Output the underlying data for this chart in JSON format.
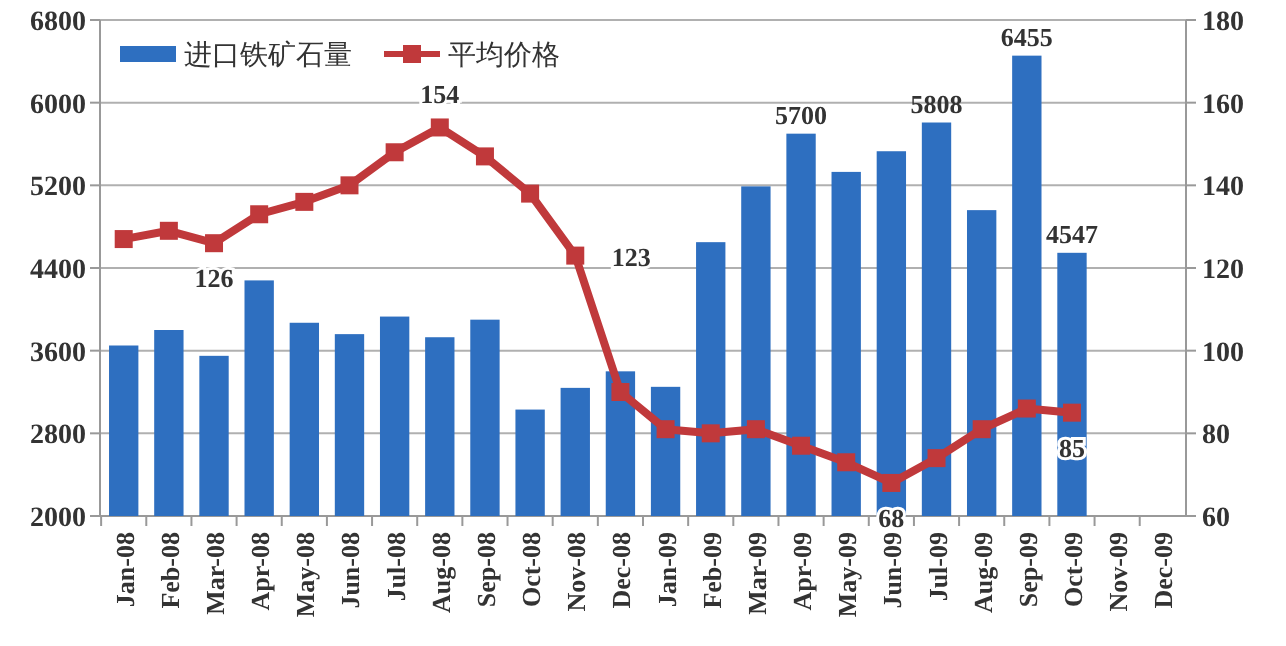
{
  "chart_data": {
    "type": "bar",
    "categories": [
      "Jan-08",
      "Feb-08",
      "Mar-08",
      "Apr-08",
      "May-08",
      "Jun-08",
      "Jul-08",
      "Aug-08",
      "Sep-08",
      "Oct-08",
      "Nov-08",
      "Dec-08",
      "Jan-09",
      "Feb-09",
      "Mar-09",
      "Apr-09",
      "May-09",
      "Jun-09",
      "Jul-09",
      "Aug-09",
      "Sep-09",
      "Oct-09",
      "Nov-09",
      "Dec-09"
    ],
    "series": [
      {
        "name": "进口铁矿石量",
        "color": "#2e6fc0",
        "values": [
          3650,
          3800,
          3550,
          4280,
          3870,
          3760,
          3930,
          3730,
          3900,
          3030,
          3240,
          3400,
          3250,
          4650,
          5190,
          5700,
          5330,
          5530,
          5808,
          4960,
          6455,
          4547,
          null,
          null
        ],
        "value_labels": [
          null,
          null,
          null,
          null,
          null,
          null,
          null,
          null,
          null,
          null,
          null,
          null,
          null,
          null,
          null,
          "5700",
          null,
          null,
          "5808",
          null,
          "6455",
          "4547",
          null,
          null
        ]
      },
      {
        "name": "平均价格",
        "type": "line",
        "axis": "y2",
        "color": "#c0393b",
        "marker": "square",
        "values": [
          127,
          129,
          126,
          133,
          136,
          140,
          148,
          154,
          147,
          138,
          123,
          90,
          81,
          80,
          81,
          77,
          73,
          68,
          74,
          81,
          86,
          85,
          null,
          null
        ],
        "value_labels": [
          null,
          null,
          "126",
          null,
          null,
          null,
          null,
          "154",
          null,
          null,
          "123",
          null,
          null,
          null,
          null,
          null,
          null,
          "68",
          null,
          null,
          null,
          "85",
          null,
          null
        ]
      }
    ],
    "ylim": [
      2000,
      6800
    ],
    "yticks": [
      2000,
      2800,
      3600,
      4400,
      5200,
      6000,
      6800
    ],
    "y2lim": [
      60,
      180
    ],
    "y2ticks": [
      60,
      80,
      100,
      120,
      140,
      160,
      180
    ],
    "grid": "y",
    "legend": "top left"
  }
}
